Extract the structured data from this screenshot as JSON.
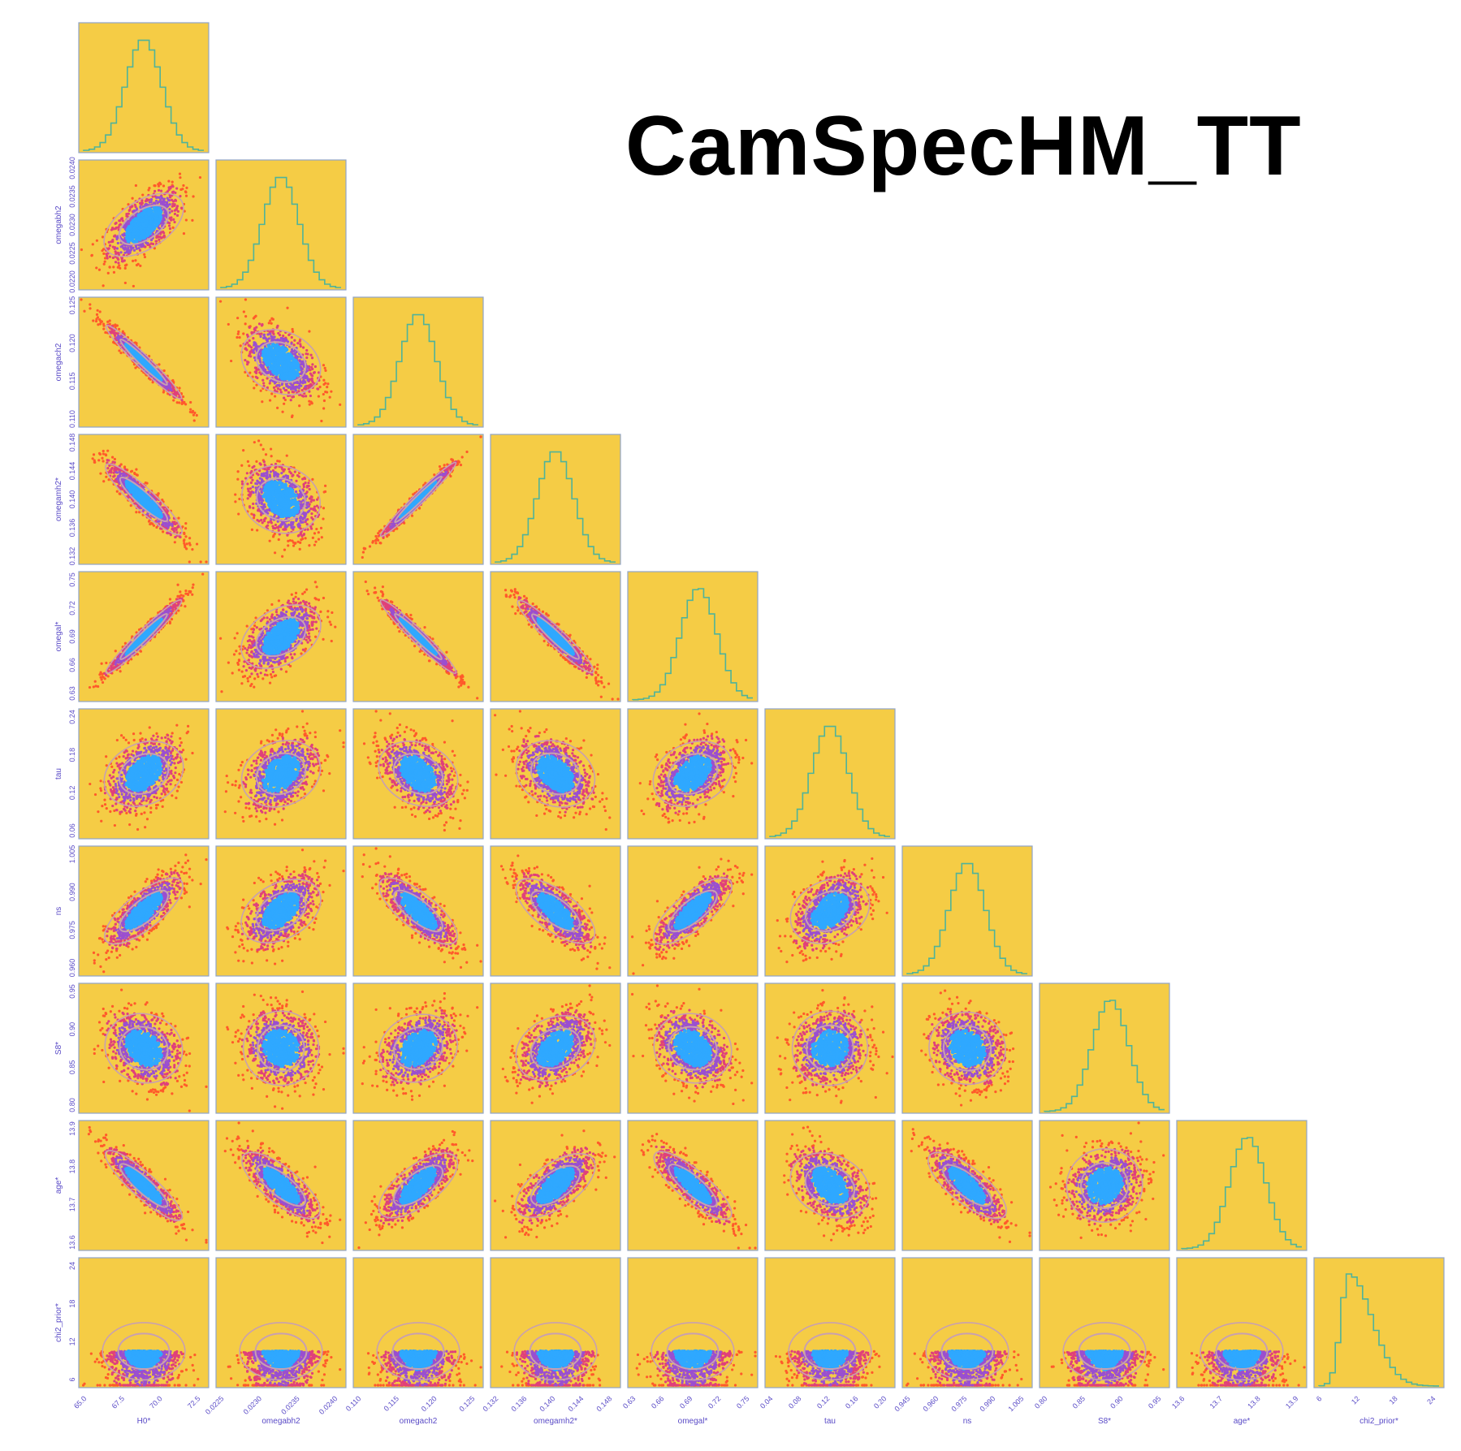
{
  "title": "CamSpecHM_TT",
  "colors": {
    "panel_bg": "#f5cc45",
    "panel_border": "#8fa4c8",
    "outer_points": "#ff5a2a",
    "mid_points": "#e0407a",
    "inner_points": "#9a4fd0",
    "core_points": "#2fa8ff",
    "contour": "#c8a0b0",
    "histogram": "#4fb39a",
    "axis_text": "#5a4bc7"
  },
  "chart_data": {
    "type": "scatter",
    "title": "CamSpecHM_TT",
    "plot_kind": "corner (triangle) plot",
    "parameters": [
      {
        "label": "H0*",
        "ticks": [
          "65.0",
          "67.5",
          "70.0",
          "72.5"
        ]
      },
      {
        "label": "omegabh2",
        "ticks": [
          "0.0225",
          "0.0230",
          "0.0235",
          "0.0240"
        ]
      },
      {
        "label": "omegach2",
        "ticks": [
          "0.110",
          "0.115",
          "0.120",
          "0.125"
        ]
      },
      {
        "label": "omegamh2*",
        "ticks": [
          "0.132",
          "0.136",
          "0.140",
          "0.144",
          "0.148"
        ]
      },
      {
        "label": "omegal*",
        "ticks": [
          "0.63",
          "0.66",
          "0.69",
          "0.72",
          "0.75"
        ]
      },
      {
        "label": "tau",
        "ticks": [
          "0.04",
          "0.08",
          "0.12",
          "0.16",
          "0.20"
        ]
      },
      {
        "label": "ns",
        "ticks": [
          "0.945",
          "0.960",
          "0.975",
          "0.990",
          "1.005"
        ]
      },
      {
        "label": "S8*",
        "ticks": [
          "0.80",
          "0.85",
          "0.90",
          "0.95"
        ]
      },
      {
        "label": "age*",
        "ticks": [
          "13.6",
          "13.7",
          "13.8",
          "13.9"
        ]
      },
      {
        "label": "chi2_prior*",
        "ticks": [
          "6",
          "12",
          "18",
          "24"
        ]
      }
    ],
    "y_ticks": [
      null,
      [
        "0.0220",
        "0.0225",
        "0.0230",
        "0.0235",
        "0.0240"
      ],
      [
        "0.110",
        "0.115",
        "0.120",
        "0.125"
      ],
      [
        "0.132",
        "0.136",
        "0.140",
        "0.144",
        "0.148"
      ],
      [
        "0.63",
        "0.66",
        "0.69",
        "0.72",
        "0.75"
      ],
      [
        "0.06",
        "0.12",
        "0.18",
        "0.24"
      ],
      [
        "0.960",
        "0.975",
        "0.990",
        "1.005"
      ],
      [
        "0.80",
        "0.85",
        "0.90",
        "0.95"
      ],
      [
        "13.6",
        "13.7",
        "13.8",
        "13.9"
      ],
      [
        "6",
        "12",
        "18",
        "24"
      ]
    ],
    "correlations": [
      [
        1
      ],
      [
        0.65,
        1
      ],
      [
        -0.97,
        -0.45,
        1
      ],
      [
        -0.92,
        -0.35,
        0.98,
        1
      ],
      [
        0.97,
        0.55,
        -0.97,
        -0.95,
        1
      ],
      [
        0.45,
        0.4,
        -0.45,
        -0.4,
        0.45,
        1
      ],
      [
        0.8,
        0.55,
        -0.8,
        -0.75,
        0.8,
        0.45,
        1
      ],
      [
        -0.3,
        -0.1,
        0.35,
        0.45,
        -0.3,
        0.1,
        -0.2,
        1
      ],
      [
        -0.9,
        -0.8,
        0.75,
        0.7,
        -0.85,
        -0.45,
        -0.8,
        0.15,
        1
      ],
      [
        0.0,
        0.0,
        0.0,
        0.0,
        0.0,
        0.0,
        0.0,
        0.0,
        0.0,
        1
      ]
    ],
    "marginals": [
      {
        "shape": "gaussian",
        "mean": 0.5,
        "sd": 0.15
      },
      {
        "shape": "gaussian",
        "mean": 0.5,
        "sd": 0.15
      },
      {
        "shape": "gaussian",
        "mean": 0.5,
        "sd": 0.15
      },
      {
        "shape": "gaussian",
        "mean": 0.5,
        "sd": 0.15
      },
      {
        "shape": "gaussian",
        "mean": 0.55,
        "sd": 0.15
      },
      {
        "shape": "gaussian",
        "mean": 0.5,
        "sd": 0.15
      },
      {
        "shape": "gaussian",
        "mean": 0.5,
        "sd": 0.15
      },
      {
        "shape": "gaussian",
        "mean": 0.55,
        "sd": 0.15
      },
      {
        "shape": "gaussian",
        "mean": 0.55,
        "sd": 0.15
      },
      {
        "shape": "skewed",
        "mean": 0.25,
        "sd": 0.12
      }
    ],
    "grid": false,
    "legend": "none"
  }
}
